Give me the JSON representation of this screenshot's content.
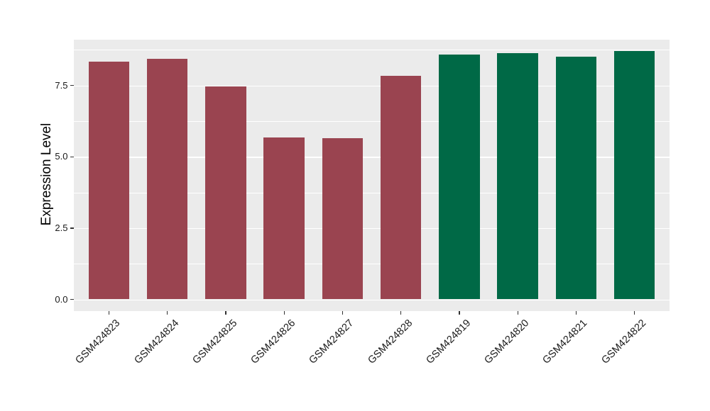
{
  "chart_data": {
    "type": "bar",
    "title": "",
    "xlabel": "",
    "ylabel": "Expression Level",
    "categories": [
      "GSM424823",
      "GSM424824",
      "GSM424825",
      "GSM424826",
      "GSM424827",
      "GSM424828",
      "GSM424819",
      "GSM424820",
      "GSM424821",
      "GSM424822"
    ],
    "values": [
      8.33,
      8.44,
      7.48,
      5.68,
      5.65,
      7.83,
      8.59,
      8.63,
      8.51,
      8.7
    ],
    "bar_colors": [
      "#9A4450",
      "#9A4450",
      "#9A4450",
      "#9A4450",
      "#9A4450",
      "#9A4450",
      "#006946",
      "#006946",
      "#006946",
      "#006946"
    ],
    "ylim": [
      0,
      9.11
    ],
    "ytick_values": [
      0.0,
      2.5,
      5.0,
      7.5
    ],
    "ytick_labels": [
      "0.0",
      "2.5",
      "5.0",
      "7.5"
    ],
    "ytick_minor_values": [
      1.25,
      3.75,
      6.25,
      8.75
    ],
    "grid": true,
    "legend_position": "none",
    "panel_background": "#EBEBEB",
    "grid_color": "#FFFFFF",
    "tick_color": "#333333",
    "axis_text_color": "#1a1a1a"
  }
}
